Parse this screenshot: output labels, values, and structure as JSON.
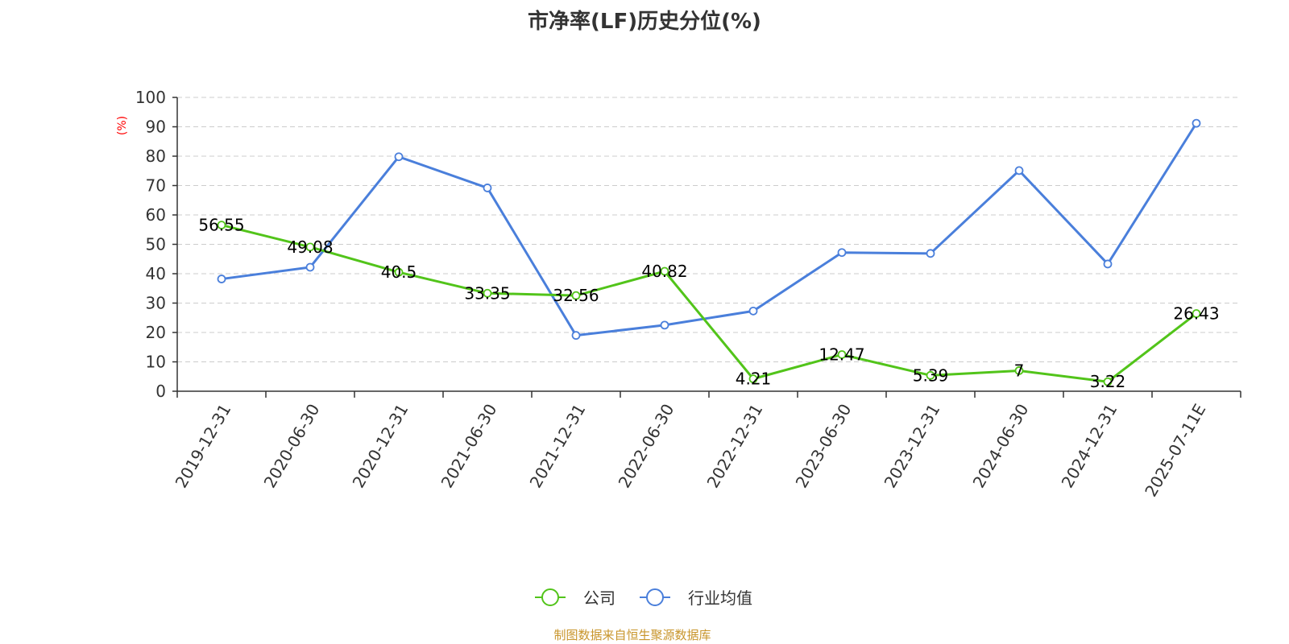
{
  "chart_data": {
    "type": "line",
    "title": "市净率(LF)历史分位(%)",
    "y_unit": "(%)",
    "categories": [
      "2019-12-31",
      "2020-06-30",
      "2020-12-31",
      "2021-06-30",
      "2021-12-31",
      "2022-06-30",
      "2022-12-31",
      "2023-06-30",
      "2023-12-31",
      "2024-06-30",
      "2024-12-31",
      "2025-07-11E"
    ],
    "ylim": [
      0,
      100
    ],
    "y_ticks": [
      0,
      10,
      20,
      30,
      40,
      50,
      60,
      70,
      80,
      90,
      100
    ],
    "grid": true,
    "legend_position": "bottom",
    "series": [
      {
        "name": "公司",
        "color": "#52c41a",
        "values": [
          56.55,
          49.08,
          40.5,
          33.35,
          32.56,
          40.82,
          4.21,
          12.47,
          5.39,
          7,
          3.22,
          26.43
        ],
        "labels": [
          "56.55",
          "49.08",
          "40.5",
          "33.35",
          "32.56",
          "40.82",
          "4.21",
          "12.47",
          "5.39",
          "7",
          "3.22",
          "26.43"
        ]
      },
      {
        "name": "行业均值",
        "color": "#4a7fdb",
        "values": [
          38.2,
          42.2,
          79.8,
          69.2,
          19.0,
          22.5,
          27.3,
          47.2,
          46.9,
          75.1,
          43.3,
          91.2
        ]
      }
    ]
  },
  "footer": {
    "source_text": "制图数据来自恒生聚源数据库",
    "source_color": "#c8952b"
  },
  "colors": {
    "axis": "#333333",
    "grid": "#cccccc",
    "unit": "#ff0000"
  }
}
